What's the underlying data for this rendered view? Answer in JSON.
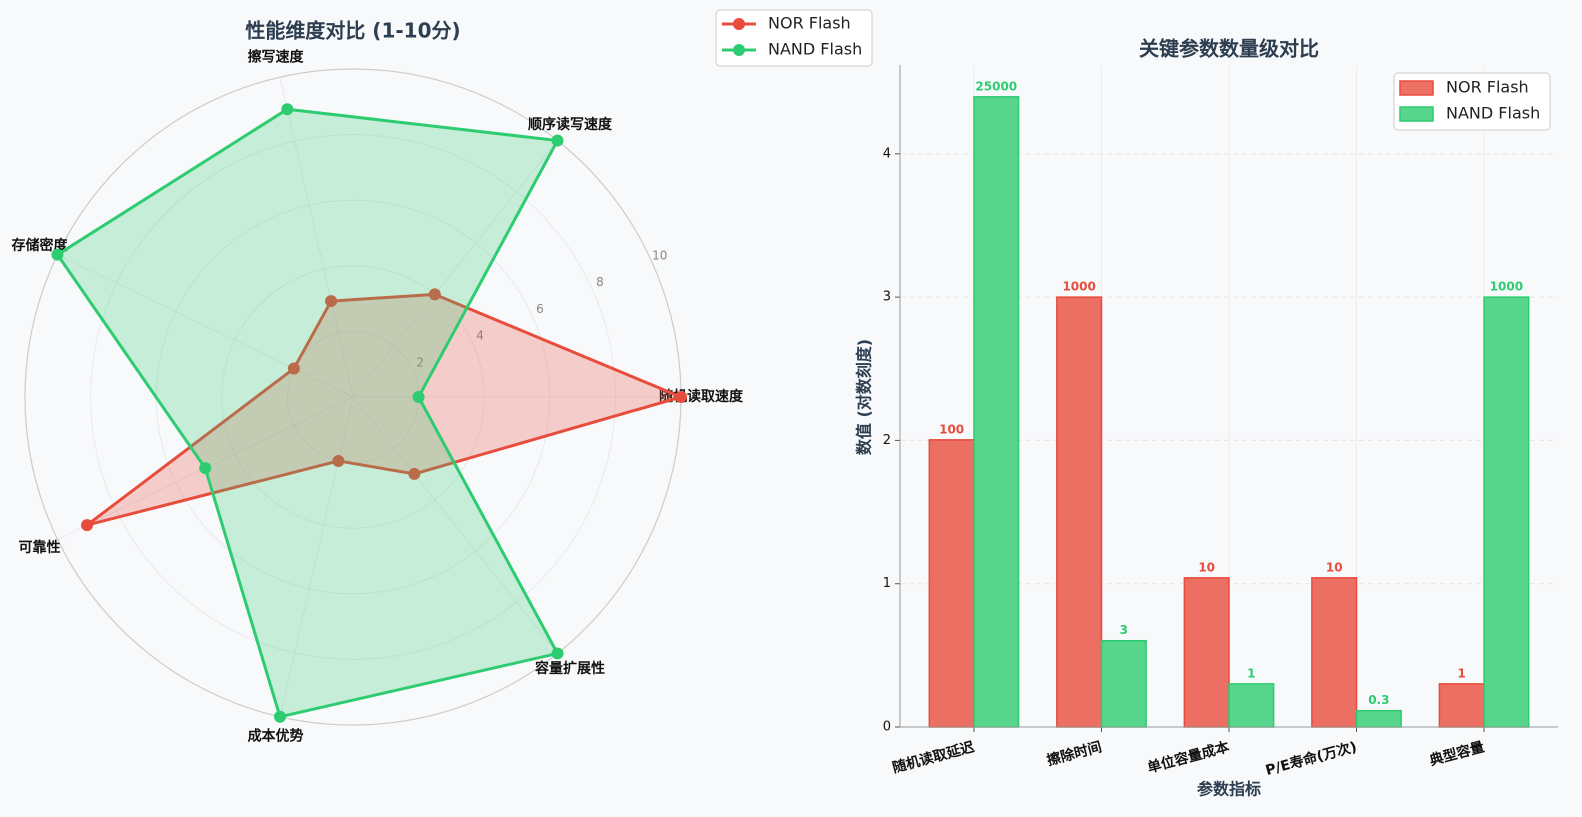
{
  "chart_data": [
    {
      "type": "radar",
      "title": "性能维度对比 (1-10分)",
      "categories": [
        "随机读取速度",
        "顺序读写速度",
        "擦写速度",
        "存储密度",
        "可靠性",
        "成本优势",
        "容量扩展性"
      ],
      "series": [
        {
          "name": "NOR Flash",
          "color": "#e74c3c",
          "values": [
            10,
            4,
            3,
            2,
            9,
            2,
            3
          ]
        },
        {
          "name": "NAND Flash",
          "color": "#2ecc71",
          "values": [
            2,
            10,
            9,
            10,
            5,
            10,
            10
          ]
        }
      ],
      "rlim": [
        0,
        10
      ],
      "rticks": [
        2,
        4,
        6,
        8,
        10
      ],
      "legend": "upper right"
    },
    {
      "type": "bar",
      "title": "关键参数数量级对比",
      "xlabel": "参数指标",
      "ylabel": "数值 (对数刻度)",
      "categories": [
        "随机读取延迟",
        "擦除时间",
        "单位容量成本",
        "P/E寿命(万次)",
        "典型容量"
      ],
      "series": [
        {
          "name": "NOR Flash",
          "color": "#e74c3c",
          "values": [
            2.004,
            3.0,
            1.041,
            1.041,
            0.301
          ],
          "value_labels": [
            "100",
            "1000",
            "10",
            "10",
            "1"
          ]
        },
        {
          "name": "NAND Flash",
          "color": "#2ecc71",
          "values": [
            4.398,
            0.602,
            0.301,
            0.114,
            3.0
          ],
          "value_labels": [
            "25000",
            "3",
            "1",
            "0.3",
            "1000"
          ]
        }
      ],
      "ylim": [
        0,
        4.62
      ],
      "yticks": [
        0,
        1,
        2,
        3,
        4
      ],
      "grid": true,
      "legend": "upper right"
    }
  ]
}
